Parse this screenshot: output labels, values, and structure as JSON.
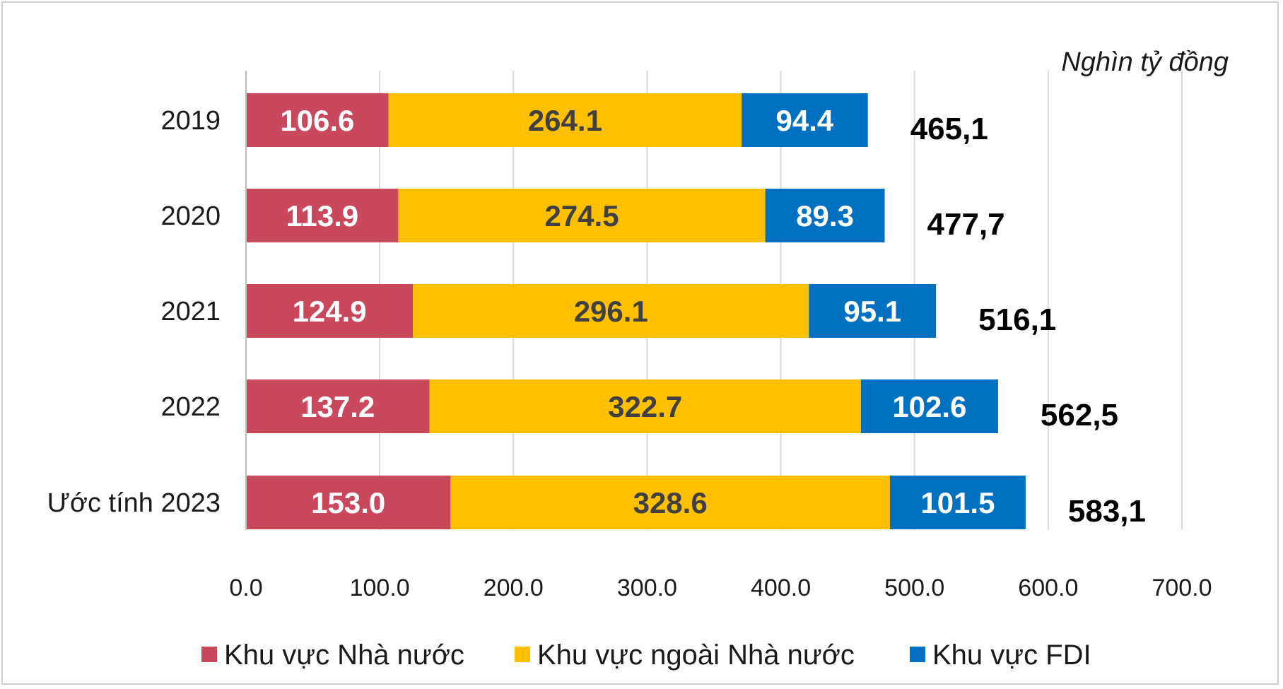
{
  "chart_data": {
    "type": "bar",
    "orientation": "horizontal",
    "stacked": true,
    "unit_label": "Nghìn tỷ đồng",
    "categories": [
      "2019",
      "2020",
      "2021",
      "2022",
      "Ước tính 2023"
    ],
    "series": [
      {
        "name": "Khu vực Nhà nước",
        "color": "#C9485B",
        "label_color": "#ffffff",
        "values": [
          106.6,
          113.9,
          124.9,
          137.2,
          153.0
        ],
        "labels": [
          "106.6",
          "113.9",
          "124.9",
          "137.2",
          "153.0"
        ]
      },
      {
        "name": "Khu vực ngoài Nhà nước",
        "color": "#FFC000",
        "label_color": "#404040",
        "values": [
          264.1,
          274.5,
          296.1,
          322.7,
          328.6
        ],
        "labels": [
          "264.1",
          "274.5",
          "296.1",
          "322.7",
          "328.6"
        ]
      },
      {
        "name": "Khu vực FDI",
        "color": "#0070C0",
        "label_color": "#ffffff",
        "values": [
          94.4,
          89.3,
          95.1,
          102.6,
          101.5
        ],
        "labels": [
          "94.4",
          "89.3",
          "95.1",
          "102.6",
          "101.5"
        ]
      }
    ],
    "totals": [
      "465,1",
      "477,7",
      "516,1",
      "562,5",
      "583,1"
    ],
    "xlim": [
      0,
      700
    ],
    "x_ticks": [
      0,
      100,
      200,
      300,
      400,
      500,
      600,
      700
    ],
    "x_tick_labels": [
      "0.0",
      "100.0",
      "200.0",
      "300.0",
      "400.0",
      "500.0",
      "600.0",
      "700.0"
    ],
    "grid": true,
    "legend_position": "bottom"
  }
}
